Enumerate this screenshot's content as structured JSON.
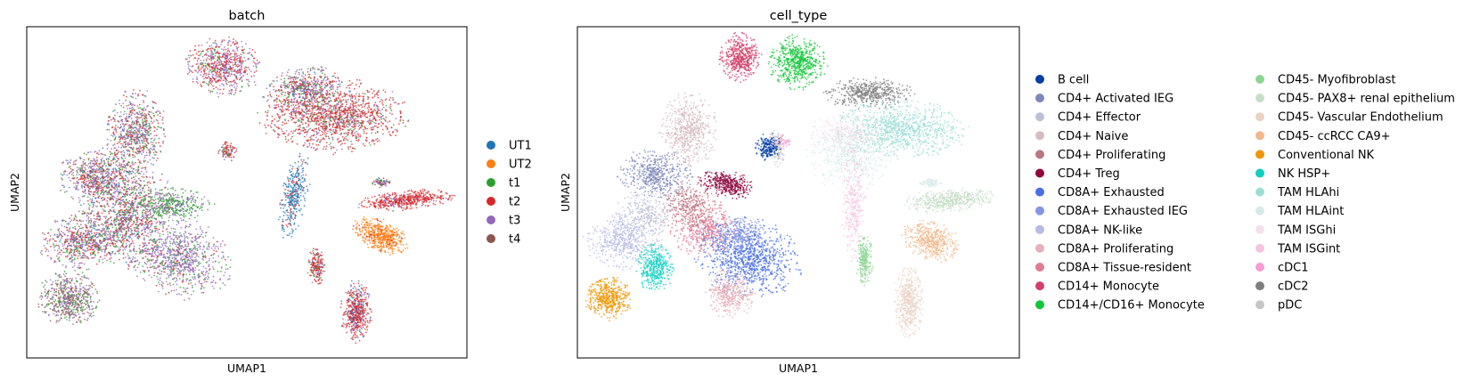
{
  "chart_data": [
    {
      "type": "scatter",
      "title": "batch",
      "xlabel": "UMAP1",
      "ylabel": "UMAP2",
      "grid": false,
      "xticks": false,
      "yticks": false,
      "legend": "right",
      "legend_entries": [
        {
          "label": "UT1",
          "color": "#1f77b4"
        },
        {
          "label": "UT2",
          "color": "#ff7f0e"
        },
        {
          "label": "t1",
          "color": "#2ca02c"
        },
        {
          "label": "t2",
          "color": "#d62728"
        },
        {
          "label": "t3",
          "color": "#9467bd"
        },
        {
          "label": "t4",
          "color": "#8c564b"
        }
      ]
    },
    {
      "type": "scatter",
      "title": "cell_type",
      "xlabel": "UMAP1",
      "ylabel": "UMAP2",
      "grid": false,
      "xticks": false,
      "yticks": false,
      "legend": "right",
      "legend_entries": [
        {
          "label": "B cell",
          "color": "#023fa5"
        },
        {
          "label": "CD4+ Activated IEG",
          "color": "#7d87b9"
        },
        {
          "label": "CD4+ Effector",
          "color": "#bec1d4"
        },
        {
          "label": "CD4+ Naive",
          "color": "#d6bcc0"
        },
        {
          "label": "CD4+ Proliferating",
          "color": "#bb7784"
        },
        {
          "label": "CD4+ Treg",
          "color": "#8e063b"
        },
        {
          "label": "CD8A+ Exhausted",
          "color": "#4a6fe3"
        },
        {
          "label": "CD8A+ Exhausted IEG",
          "color": "#8595e1"
        },
        {
          "label": "CD8A+ NK-like",
          "color": "#b5bbe3"
        },
        {
          "label": "CD8A+ Proliferating",
          "color": "#e6afb9"
        },
        {
          "label": "CD8A+ Tissue-resident",
          "color": "#e07b91"
        },
        {
          "label": "CD14+ Monocyte",
          "color": "#d33f6a"
        },
        {
          "label": "CD14+/CD16+ Monocyte",
          "color": "#11c638"
        },
        {
          "label": "CD45- Myofibroblast",
          "color": "#8dd593"
        },
        {
          "label": "CD45- PAX8+ renal epithelium",
          "color": "#c6dec7"
        },
        {
          "label": "CD45- Vascular Endothelium",
          "color": "#ead3c6"
        },
        {
          "label": "CD45- ccRCC CA9+",
          "color": "#f0b98d"
        },
        {
          "label": "Conventional NK",
          "color": "#ef9708"
        },
        {
          "label": "NK HSP+",
          "color": "#0fcfc0"
        },
        {
          "label": "TAM HLAhi",
          "color": "#9cded6"
        },
        {
          "label": "TAM HLAint",
          "color": "#d5eae7"
        },
        {
          "label": "TAM ISGhi",
          "color": "#f3e1eb"
        },
        {
          "label": "TAM ISGint",
          "color": "#f6c4e1"
        },
        {
          "label": "cDC1",
          "color": "#f79cd4"
        },
        {
          "label": "cDC2",
          "color": "#7f7f7f"
        },
        {
          "label": "pDC",
          "color": "#c7c7c7"
        }
      ]
    }
  ]
}
